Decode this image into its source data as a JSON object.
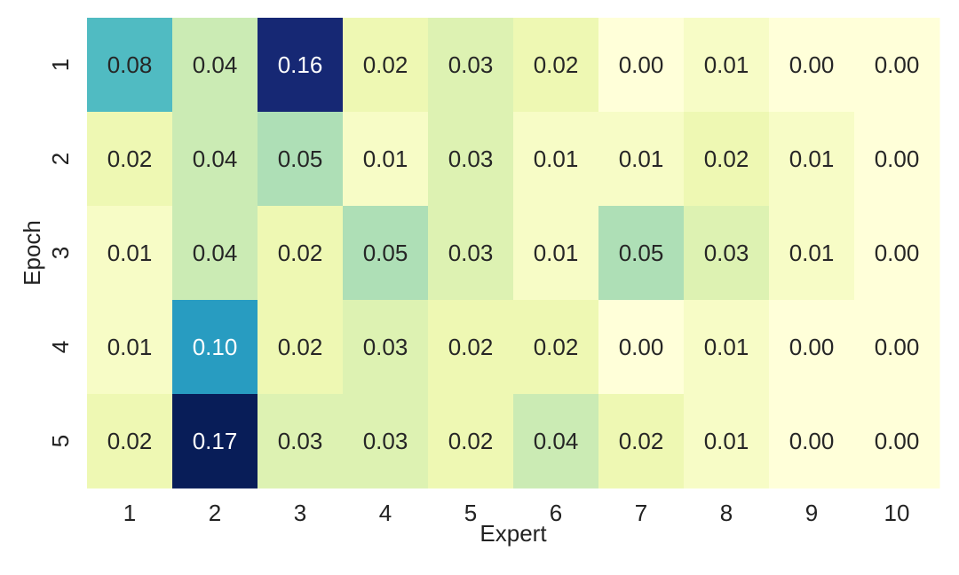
{
  "chart_data": {
    "type": "heatmap",
    "title": "",
    "xlabel": "Expert",
    "ylabel": "Epoch",
    "x_ticks": [
      "1",
      "2",
      "3",
      "4",
      "5",
      "6",
      "7",
      "8",
      "9",
      "10"
    ],
    "y_ticks": [
      "1",
      "2",
      "3",
      "4",
      "5"
    ],
    "value_format": "0.00",
    "colormap": "YlGnBu",
    "value_range": [
      0.0,
      0.17
    ],
    "values": [
      [
        0.08,
        0.04,
        0.16,
        0.02,
        0.03,
        0.02,
        0.0,
        0.01,
        0.0,
        0.0
      ],
      [
        0.02,
        0.04,
        0.05,
        0.01,
        0.03,
        0.01,
        0.01,
        0.02,
        0.01,
        0.0
      ],
      [
        0.01,
        0.04,
        0.02,
        0.05,
        0.03,
        0.01,
        0.05,
        0.03,
        0.01,
        0.0
      ],
      [
        0.01,
        0.1,
        0.02,
        0.03,
        0.02,
        0.02,
        0.0,
        0.01,
        0.0,
        0.0
      ],
      [
        0.02,
        0.17,
        0.03,
        0.03,
        0.02,
        0.04,
        0.02,
        0.01,
        0.0,
        0.0
      ]
    ],
    "colorbar": false,
    "grid": false
  }
}
